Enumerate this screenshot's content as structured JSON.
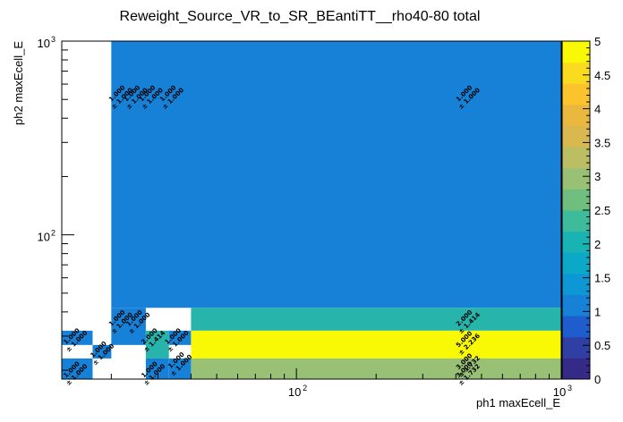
{
  "chart_data": {
    "type": "heatmap",
    "title": "Reweight_Source_VR_to_SR_BEantiTT__rho40-80 total",
    "xlabel": "ph1 maxEcell_E",
    "ylabel": "ph2 maxEcell_E",
    "x_scale": "log",
    "y_scale": "log",
    "xlim": [
      13,
      1000
    ],
    "ylim": [
      18,
      1000
    ],
    "zlim": [
      0,
      5
    ],
    "x_ticks": [
      {
        "base": "10",
        "exp": "2"
      },
      {
        "base": "10",
        "exp": "3"
      }
    ],
    "y_ticks": [
      {
        "base": "10",
        "exp": "2"
      },
      {
        "base": "10",
        "exp": "3"
      }
    ],
    "colorbar_ticks": [
      "0",
      "0.5",
      "1",
      "1.5",
      "2",
      "2.5",
      "3",
      "3.5",
      "4",
      "4.5",
      "5"
    ],
    "cells": [
      {
        "x": [
          20,
          1000
        ],
        "y": [
          42,
          1000
        ],
        "z": 1,
        "value": "1.000",
        "error": "± 1.000"
      },
      {
        "x": [
          20,
          27
        ],
        "y": [
          27,
          42
        ],
        "z": 1,
        "value": "1.000",
        "error": "± 1.000"
      },
      {
        "x": [
          40,
          1000
        ],
        "y": [
          32,
          42
        ],
        "z": 2,
        "value": "2.000",
        "error": "± 1.414"
      },
      {
        "x": [
          13,
          17
        ],
        "y": [
          27,
          32
        ],
        "z": 1,
        "value": "1.000",
        "error": "± 1.000"
      },
      {
        "x": [
          27,
          33
        ],
        "y": [
          23,
          32
        ],
        "z": 2,
        "value": "2.000",
        "error": "± 1.414"
      },
      {
        "x": [
          33,
          40
        ],
        "y": [
          27,
          32
        ],
        "z": 1,
        "value": "1.000",
        "error": "± 1.000"
      },
      {
        "x": [
          40,
          1000
        ],
        "y": [
          23,
          32
        ],
        "z": 5,
        "value": "5.000",
        "error": "± 2.236"
      },
      {
        "x": [
          17,
          20
        ],
        "y": [
          23,
          27
        ],
        "z": 1,
        "value": "1.000",
        "error": "± 1.000"
      },
      {
        "x": [
          33,
          40
        ],
        "y": [
          18,
          23
        ],
        "z": 1,
        "value": "1.000",
        "error": "± 1.000"
      },
      {
        "x": [
          40,
          1000
        ],
        "y": [
          18,
          23
        ],
        "z": 3,
        "value": "3.000",
        "error": "± 1.732"
      },
      {
        "x": [
          13,
          17
        ],
        "y": [
          18,
          23
        ],
        "z": 1,
        "value": "1.000",
        "error": "± 1.000"
      },
      {
        "x": [
          27,
          33
        ],
        "y": [
          18,
          23
        ],
        "z": 1,
        "value": "1.000",
        "error": "± 1.000"
      }
    ],
    "labels": [
      {
        "x": 21.5,
        "y": 520,
        "value": "1.000",
        "error": "± 1.000"
      },
      {
        "x": 24.5,
        "y": 520,
        "value": "1.000",
        "error": "± 1.000"
      },
      {
        "x": 28,
        "y": 520,
        "value": "1.000",
        "error": "± 1.000"
      },
      {
        "x": 33.5,
        "y": 520,
        "value": "1.000",
        "error": "± 1.000"
      },
      {
        "x": 440,
        "y": 520,
        "value": "1.000",
        "error": "± 1.000"
      },
      {
        "x": 21.5,
        "y": 36,
        "value": "1.000",
        "error": "± 1.000"
      },
      {
        "x": 25,
        "y": 36,
        "value": "1.000",
        "error": "± 1.000"
      },
      {
        "x": 440,
        "y": 36,
        "value": "2.000",
        "error": "± 1.414"
      },
      {
        "x": 14.5,
        "y": 29,
        "value": "1.000",
        "error": "± 1.000"
      },
      {
        "x": 28.5,
        "y": 29,
        "value": "2.000",
        "error": "± 1.414"
      },
      {
        "x": 35,
        "y": 29,
        "value": "1.000",
        "error": "± 1.000"
      },
      {
        "x": 440,
        "y": 28,
        "value": "5.000",
        "error": "± 2.236"
      },
      {
        "x": 18.3,
        "y": 24.8,
        "value": "1.000",
        "error": "± 1.000"
      },
      {
        "x": 36,
        "y": 21.8,
        "value": "1.000",
        "error": "± 1.000"
      },
      {
        "x": 440,
        "y": 21.5,
        "value": "3.000",
        "error": "± 1.732"
      },
      {
        "x": 14.5,
        "y": 19.5,
        "value": "1.000",
        "error": "± 1.000"
      },
      {
        "x": 28.5,
        "y": 19.5,
        "value": "1.000",
        "error": "± 1.000"
      },
      {
        "x": 440,
        "y": 19.5,
        "value": "3.000",
        "error": "± 1.732"
      }
    ],
    "colors": {
      "z1": "#1781d8",
      "z2": "#27b4ab",
      "z3": "#98c176",
      "z5": "#f9f905"
    },
    "palette": [
      "#352a87",
      "#2f3fa3",
      "#1f5ccd",
      "#1781d8",
      "#0d97d5",
      "#0ba9c7",
      "#1ab3b4",
      "#3ebb9b",
      "#6fbe7e",
      "#98c176",
      "#bbbe63",
      "#d8b84f",
      "#eab83e",
      "#fbc32c",
      "#f9dc1e",
      "#f9f905"
    ]
  }
}
